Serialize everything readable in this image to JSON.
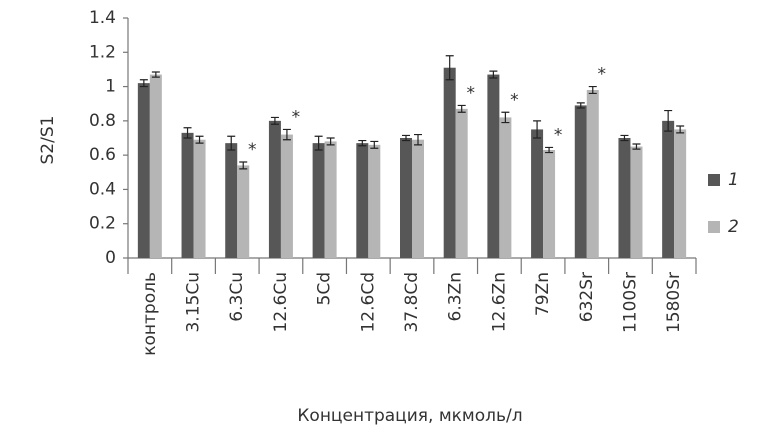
{
  "chart_data": {
    "type": "bar",
    "y_label": "S2/S1",
    "x_label": "Концентрация, мкмоль/л",
    "categories": [
      "контроль",
      "3.15Cu",
      "6.3Cu",
      "12.6Cu",
      "5Cd",
      "12.6Cd",
      "37.8Cd",
      "6.3Zn",
      "12.6Zn",
      "79Zn",
      "632Sr",
      "1100Sr",
      "1580Sr"
    ],
    "series": [
      {
        "name": "1",
        "color": "#575757",
        "values": [
          1.02,
          0.73,
          0.67,
          0.8,
          0.67,
          0.67,
          0.7,
          1.11,
          1.07,
          0.75,
          0.89,
          0.7,
          0.8
        ],
        "errors": [
          0.02,
          0.03,
          0.04,
          0.02,
          0.04,
          0.015,
          0.015,
          0.07,
          0.02,
          0.05,
          0.015,
          0.015,
          0.06
        ]
      },
      {
        "name": "2",
        "color": "#b5b5b5",
        "values": [
          1.07,
          0.69,
          0.54,
          0.72,
          0.68,
          0.66,
          0.69,
          0.87,
          0.82,
          0.63,
          0.98,
          0.65,
          0.75
        ],
        "errors": [
          0.015,
          0.02,
          0.02,
          0.03,
          0.02,
          0.02,
          0.03,
          0.02,
          0.03,
          0.015,
          0.02,
          0.015,
          0.02
        ]
      }
    ],
    "annotations": [
      {
        "series": 1,
        "index": 2,
        "text": "*"
      },
      {
        "series": 1,
        "index": 3,
        "text": "*"
      },
      {
        "series": 1,
        "index": 7,
        "text": "*"
      },
      {
        "series": 1,
        "index": 8,
        "text": "*"
      },
      {
        "series": 1,
        "index": 9,
        "text": "*"
      },
      {
        "series": 1,
        "index": 10,
        "text": "*"
      }
    ],
    "ylim": [
      0,
      1.4
    ],
    "yticks": [
      0,
      0.2,
      0.4,
      0.6,
      0.8,
      1,
      1.2,
      1.4
    ],
    "grid": false,
    "legend": "right"
  }
}
